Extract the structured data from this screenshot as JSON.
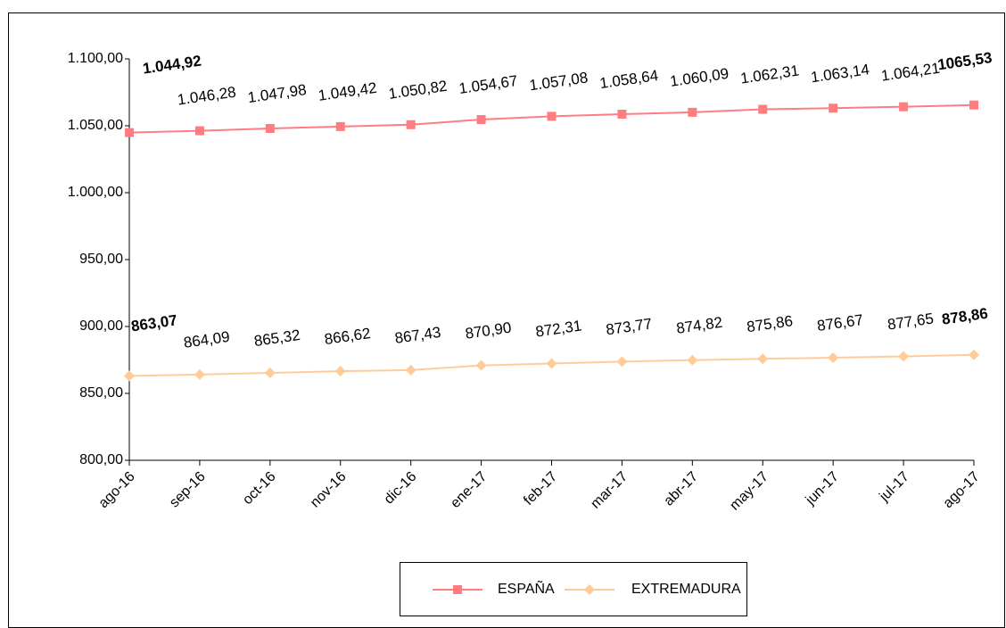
{
  "chart_data": {
    "type": "line",
    "categories": [
      "ago-16",
      "sep-16",
      "oct-16",
      "nov-16",
      "dic-16",
      "ene-17",
      "feb-17",
      "mar-17",
      "abr-17",
      "may-17",
      "jun-17",
      "jul-17",
      "ago-17"
    ],
    "series": [
      {
        "name": "ESPAÑA",
        "color": "#ff7c80",
        "marker": "square",
        "values": [
          1044.92,
          1046.28,
          1047.98,
          1049.42,
          1050.82,
          1054.67,
          1057.08,
          1058.64,
          1060.09,
          1062.31,
          1063.14,
          1064.21,
          1065.53
        ],
        "value_labels": [
          "1.044,92",
          "1.046,28",
          "1.047,98",
          "1.049,42",
          "1.050,82",
          "1.054,67",
          "1.057,08",
          "1.058,64",
          "1.060,09",
          "1.062,31",
          "1.063,14",
          "1.064,21",
          "1065,53"
        ]
      },
      {
        "name": "EXTREMADURA",
        "color": "#ffcc99",
        "marker": "diamond",
        "values": [
          863.07,
          864.09,
          865.32,
          866.62,
          867.43,
          870.9,
          872.31,
          873.77,
          874.82,
          875.86,
          876.67,
          877.65,
          878.86
        ],
        "value_labels": [
          "863,07",
          "864,09",
          "865,32",
          "866,62",
          "867,43",
          "870,90",
          "872,31",
          "873,77",
          "874,82",
          "875,86",
          "876,67",
          "877,65",
          "878,86"
        ]
      }
    ],
    "ylim": [
      800,
      1100
    ],
    "yticks": [
      {
        "value": 800,
        "label": "800,00"
      },
      {
        "value": 850,
        "label": "850,00"
      },
      {
        "value": 900,
        "label": "900,00"
      },
      {
        "value": 950,
        "label": "950,00"
      },
      {
        "value": 1000,
        "label": "1.000,00"
      },
      {
        "value": 1050,
        "label": "1.050,00"
      },
      {
        "value": 1100,
        "label": "1.100,00"
      }
    ],
    "grid": false,
    "legend": "bottom"
  }
}
